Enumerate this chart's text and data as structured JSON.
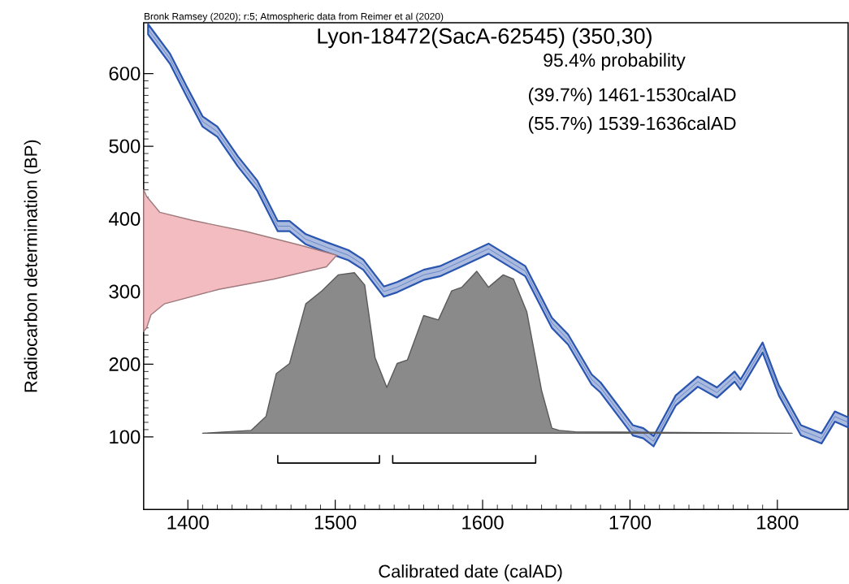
{
  "chart_data": {
    "type": "line",
    "title": "Lyon-18472(SacA-62545) (350,30)",
    "xlabel": "Calibrated date (calAD)",
    "ylabel": "Radiocarbon determination (BP)",
    "annotations": [
      "Bronk Ramsey (2020); r:5; Atmospheric data from Reimer et al (2020)",
      "95.4% probability",
      "(39.7%) 1461-1530calAD",
      "(55.7%) 1539-1636calAD"
    ],
    "xlim": [
      1370,
      1848
    ],
    "ylim": [
      0,
      670
    ],
    "xticks": [
      1400,
      1500,
      1600,
      1700,
      1800
    ],
    "yticks": [
      100,
      200,
      300,
      400,
      500,
      600
    ],
    "series": [
      {
        "color": "#2a55b0",
        "x": [
          1373,
          1388,
          1399,
          1410,
          1420,
          1434,
          1447,
          1461,
          1469,
          1480,
          1494,
          1509,
          1519,
          1533,
          1542,
          1560,
          1571,
          1586,
          1604,
          1629,
          1647,
          1658,
          1674,
          1680,
          1702,
          1709,
          1716,
          1731,
          1746,
          1759,
          1771,
          1775,
          1790,
          1801,
          1816,
          1830,
          1839,
          1848
        ],
        "values": [
          661,
          620,
          576,
          534,
          520,
          479,
          446,
          390,
          390,
          372,
          361,
          350,
          337,
          300,
          306,
          323,
          328,
          342,
          359,
          328,
          257,
          234,
          179,
          168,
          109,
          105,
          94,
          150,
          176,
          161,
          183,
          172,
          223,
          164,
          109,
          98,
          128,
          120
        ],
        "lower": [
          654,
          613,
          569,
          527,
          513,
          472,
          439,
          383,
          383,
          365,
          354,
          343,
          330,
          293,
          299,
          316,
          321,
          335,
          352,
          321,
          250,
          227,
          172,
          161,
          102,
          98,
          87,
          143,
          169,
          154,
          176,
          165,
          216,
          157,
          102,
          91,
          121,
          113
        ],
        "upper": [
          668,
          627,
          583,
          541,
          527,
          486,
          453,
          397,
          397,
          379,
          368,
          357,
          344,
          307,
          313,
          330,
          335,
          349,
          366,
          335,
          264,
          241,
          186,
          175,
          116,
          112,
          101,
          157,
          183,
          168,
          190,
          179,
          230,
          171,
          116,
          105,
          135,
          127
        ]
      },
      {
        "type": "area",
        "color": "#f3bcc1",
        "x": [
          1370,
          1372,
          1381,
          1403,
          1439,
          1476,
          1501,
          1494,
          1458,
          1421,
          1384,
          1375,
          1372,
          1370
        ],
        "values": [
          440,
          431,
          409,
          398,
          383,
          364,
          350,
          334,
          317,
          303,
          283,
          268,
          250,
          245
        ]
      },
      {
        "type": "area",
        "color": "#8a8a8a",
        "x": [
          1410,
          1443,
          1453,
          1460,
          1469,
          1480,
          1491,
          1502,
          1513,
          1520,
          1527,
          1535,
          1542,
          1549,
          1560,
          1570,
          1579,
          1586,
          1596,
          1604,
          1614,
          1621,
          1630,
          1640,
          1647,
          1652,
          1663,
          1810
        ],
        "values": [
          105,
          109,
          128,
          187,
          201,
          283,
          301,
          323,
          326,
          309,
          209,
          168,
          201,
          206,
          267,
          261,
          301,
          306,
          328,
          306,
          323,
          317,
          272,
          164,
          112,
          109,
          107,
          105
        ]
      },
      {
        "color": "#000000",
        "x": [
          1461,
          1461,
          1530,
          1530
        ],
        "values": [
          75,
          64,
          64,
          75
        ]
      },
      {
        "color": "#000000",
        "x": [
          1539,
          1539,
          1636,
          1636
        ],
        "values": [
          75,
          64,
          64,
          75
        ]
      }
    ]
  }
}
